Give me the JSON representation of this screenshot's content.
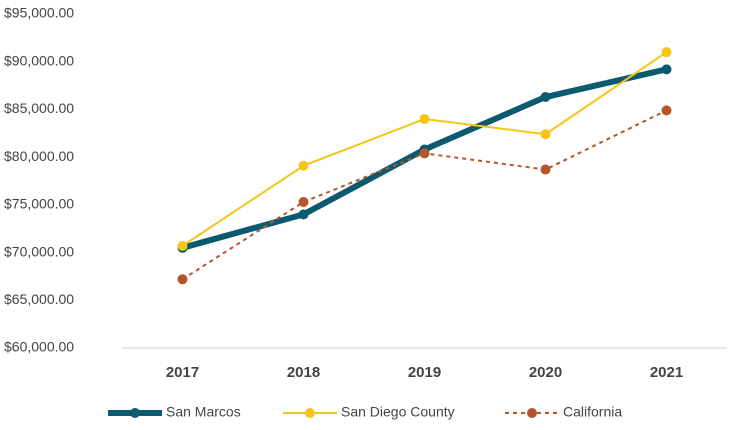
{
  "chart_data": {
    "type": "line",
    "categories": [
      "2017",
      "2018",
      "2019",
      "2020",
      "2021"
    ],
    "series": [
      {
        "name": "San Marcos",
        "color": "#0b5a6e",
        "values": [
          70500,
          74000,
          80800,
          86300,
          89200
        ]
      },
      {
        "name": "San Diego County",
        "color": "#f5c518",
        "values": [
          70700,
          79100,
          84000,
          82400,
          91000
        ]
      },
      {
        "name": "California",
        "color": "#b5562a",
        "values": [
          67200,
          75300,
          80400,
          78700,
          84900
        ]
      }
    ],
    "ylim": [
      60000,
      95000
    ],
    "yticks": [
      {
        "value": 60000,
        "label": "$60,000.00"
      },
      {
        "value": 65000,
        "label": "$65,000.00"
      },
      {
        "value": 70000,
        "label": "$70,000.00"
      },
      {
        "value": 75000,
        "label": "$75,000.00"
      },
      {
        "value": 80000,
        "label": "$80,000.00"
      },
      {
        "value": 85000,
        "label": "$85,000.00"
      },
      {
        "value": 90000,
        "label": "$90,000.00"
      },
      {
        "value": 95000,
        "label": "$95,000.00"
      }
    ],
    "grid": false,
    "legend": "bottom"
  }
}
